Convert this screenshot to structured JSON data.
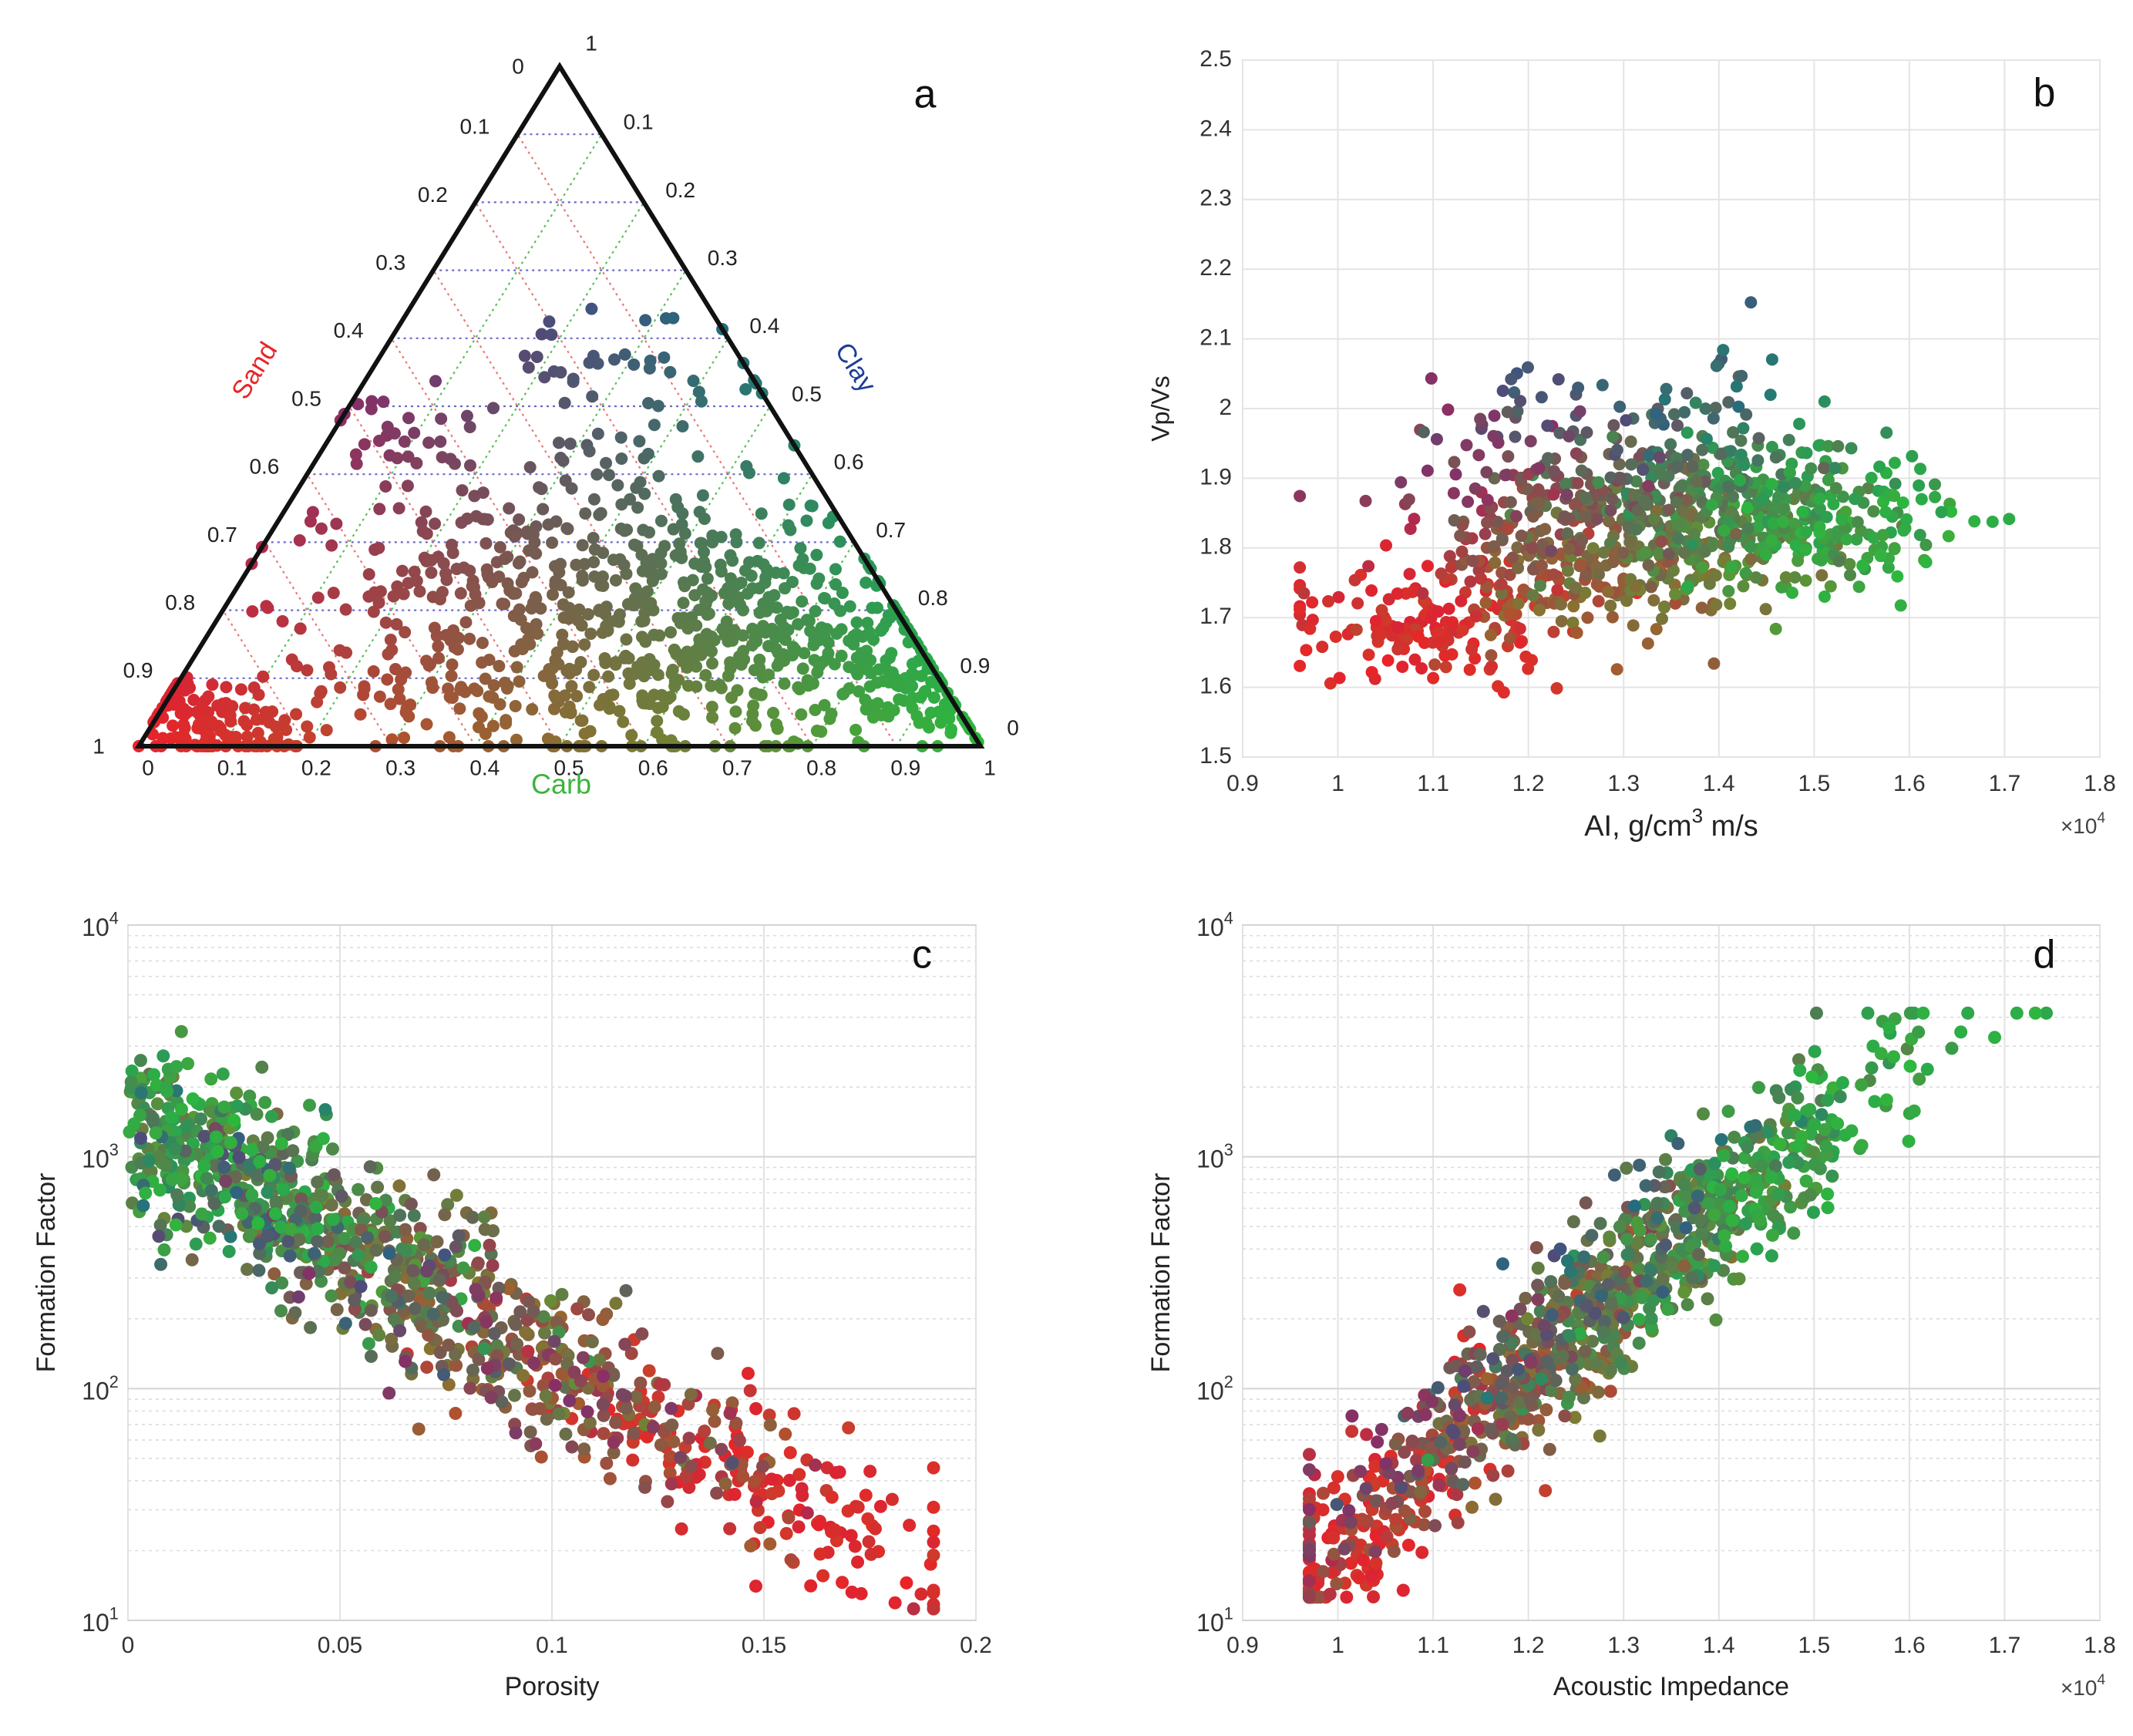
{
  "chart_data": [
    {
      "id": "a",
      "type": "ternary",
      "panel_label": "a",
      "axis_labels": {
        "sand": "Sand",
        "clay": "Clay",
        "carb": "Carb"
      },
      "apex_label_top_left": "0",
      "apex_label_top_right": "1",
      "left_corner_label": "1",
      "right_corner_label": "0",
      "sand_ticks": [
        "0.1",
        "0.2",
        "0.3",
        "0.4",
        "0.5",
        "0.6",
        "0.7",
        "0.8",
        "0.9"
      ],
      "clay_ticks": [
        "0.1",
        "0.2",
        "0.3",
        "0.4",
        "0.5",
        "0.6",
        "0.7",
        "0.8",
        "0.9"
      ],
      "carb_ticks": [
        "0",
        "0.1",
        "0.2",
        "0.3",
        "0.4",
        "0.5",
        "0.6",
        "0.7",
        "0.8",
        "0.9",
        "1"
      ],
      "colors": {
        "sand": "#e8252a",
        "carb": "#3cb43c",
        "clay": "#1c3c96"
      },
      "grid_colors": {
        "sand": "#e87a7a",
        "carb": "#5cbf5c",
        "clay": "#6a6ac8"
      }
    },
    {
      "id": "b",
      "type": "scatter",
      "panel_label": "b",
      "xlabel": "AI, g/cm",
      "xlabel_sup": "3",
      "xlabel_tail": " m/s",
      "ylabel": "Vp/Vs",
      "xlim": [
        0.9,
        1.8
      ],
      "ylim": [
        1.5,
        2.5
      ],
      "xticks": [
        "0.9",
        "1",
        "1.1",
        "1.2",
        "1.3",
        "1.4",
        "1.5",
        "1.6",
        "1.7",
        "1.8"
      ],
      "yticks": [
        "1.5",
        "1.6",
        "1.7",
        "1.8",
        "1.9",
        "2",
        "2.1",
        "2.2",
        "2.3",
        "2.4",
        "2.5"
      ],
      "exponent_label": "×10",
      "exponent_sup": "4",
      "grid": true
    },
    {
      "id": "c",
      "type": "scatter",
      "panel_label": "c",
      "xlabel": "Porosity",
      "ylabel": "Formation Factor",
      "xlim": [
        0,
        0.2
      ],
      "ylim": [
        10,
        10000
      ],
      "yscale": "log",
      "xticks": [
        "0",
        "0.05",
        "0.1",
        "0.15",
        "0.2"
      ],
      "yticks": [
        "10",
        "10",
        "10",
        "10"
      ],
      "ytick_sups": [
        "1",
        "2",
        "3",
        "4"
      ],
      "grid": true
    },
    {
      "id": "d",
      "type": "scatter",
      "panel_label": "d",
      "xlabel": "Acoustic Impedance",
      "ylabel": "Formation Factor",
      "xlim": [
        0.9,
        1.8
      ],
      "ylim": [
        10,
        10000
      ],
      "yscale": "log",
      "xticks": [
        "0.9",
        "1",
        "1.1",
        "1.2",
        "1.3",
        "1.4",
        "1.5",
        "1.6",
        "1.7",
        "1.8"
      ],
      "yticks": [
        "10",
        "10",
        "10",
        "10"
      ],
      "ytick_sups": [
        "1",
        "2",
        "3",
        "4"
      ],
      "exponent_label": "×10",
      "exponent_sup": "4",
      "grid": true
    }
  ]
}
